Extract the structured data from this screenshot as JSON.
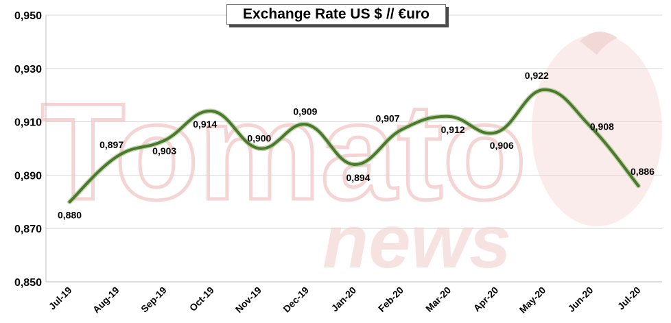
{
  "chart_data": {
    "type": "line",
    "title": "Exchange Rate US $ // €uro",
    "categories": [
      "Jul-19",
      "Aug-19",
      "Sep-19",
      "Oct-19",
      "Nov-19",
      "Dec-19",
      "Jan-20",
      "Feb-20",
      "Mar-20",
      "Apr-20",
      "May-20",
      "Jun-20",
      "Jul-20"
    ],
    "series": [
      {
        "values": [
          0.88,
          0.897,
          0.903,
          0.914,
          0.9,
          0.909,
          0.894,
          0.907,
          0.912,
          0.906,
          0.922,
          0.908,
          0.886
        ],
        "labels": [
          "0,880",
          "0,897",
          "0,903",
          "0,914",
          "0,900",
          "0,909",
          "0,894",
          "0,907",
          "0,912",
          "0,906",
          "0,922",
          "0,908",
          "0,886"
        ]
      }
    ],
    "y_ticks": [
      "0,850",
      "0,870",
      "0,890",
      "0,910",
      "0,930",
      "0,950"
    ],
    "ylim": [
      0.85,
      0.95
    ],
    "grid": true,
    "line_color": "#4a7a2c",
    "watermark": [
      "Tomato",
      "news"
    ]
  }
}
